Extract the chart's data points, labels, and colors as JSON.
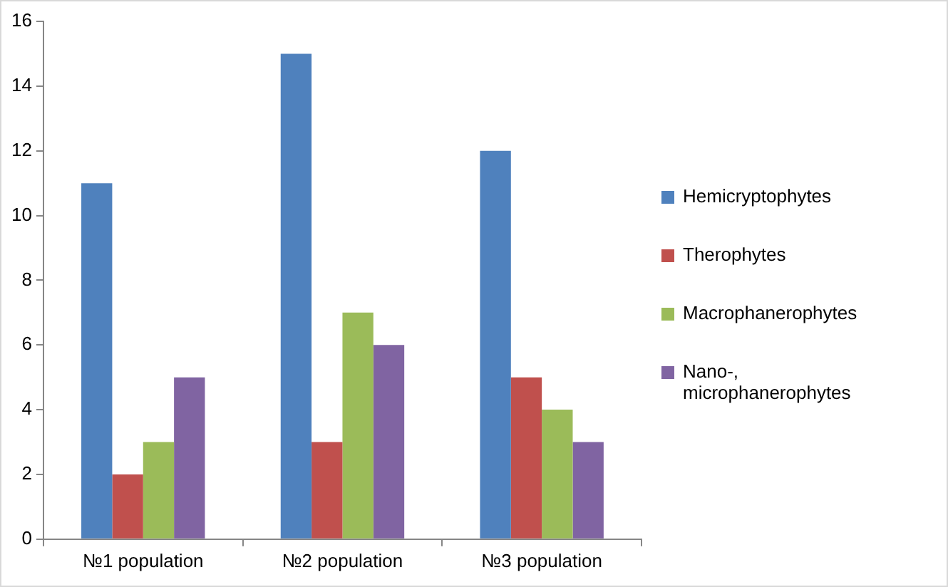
{
  "chart_data": {
    "type": "bar",
    "categories": [
      "№1 population",
      "№2 population",
      "№3 population"
    ],
    "series": [
      {
        "name": "Hemicryptophytes",
        "color": "#4f81bd",
        "values": [
          11,
          15,
          12
        ]
      },
      {
        "name": "Therophytes",
        "color": "#c0504d",
        "values": [
          2,
          3,
          5
        ]
      },
      {
        "name": "Macrophanerophytes",
        "color": "#9bbb59",
        "values": [
          3,
          7,
          4
        ]
      },
      {
        "name": "Nano-, microphanerophytes",
        "color": "#8064a2",
        "values": [
          5,
          6,
          3
        ]
      }
    ],
    "ylim": [
      0,
      16
    ],
    "yticks": [
      0,
      2,
      4,
      6,
      8,
      10,
      12,
      14,
      16
    ],
    "grid": false,
    "legend": "right"
  }
}
